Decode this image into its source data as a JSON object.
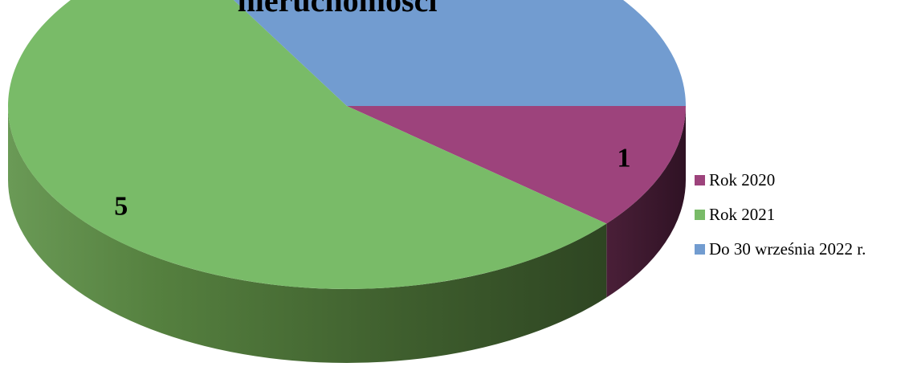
{
  "chart_data": {
    "type": "pie",
    "title": "nieruchomości",
    "categories": [
      "Rok 2020",
      "Rok 2021",
      "Do 30 września 2022 r."
    ],
    "values": [
      1,
      5,
      3
    ],
    "colors": [
      "#9d437c",
      "#79bb68",
      "#729cd0"
    ],
    "legend_position": "right",
    "three_d": true
  }
}
